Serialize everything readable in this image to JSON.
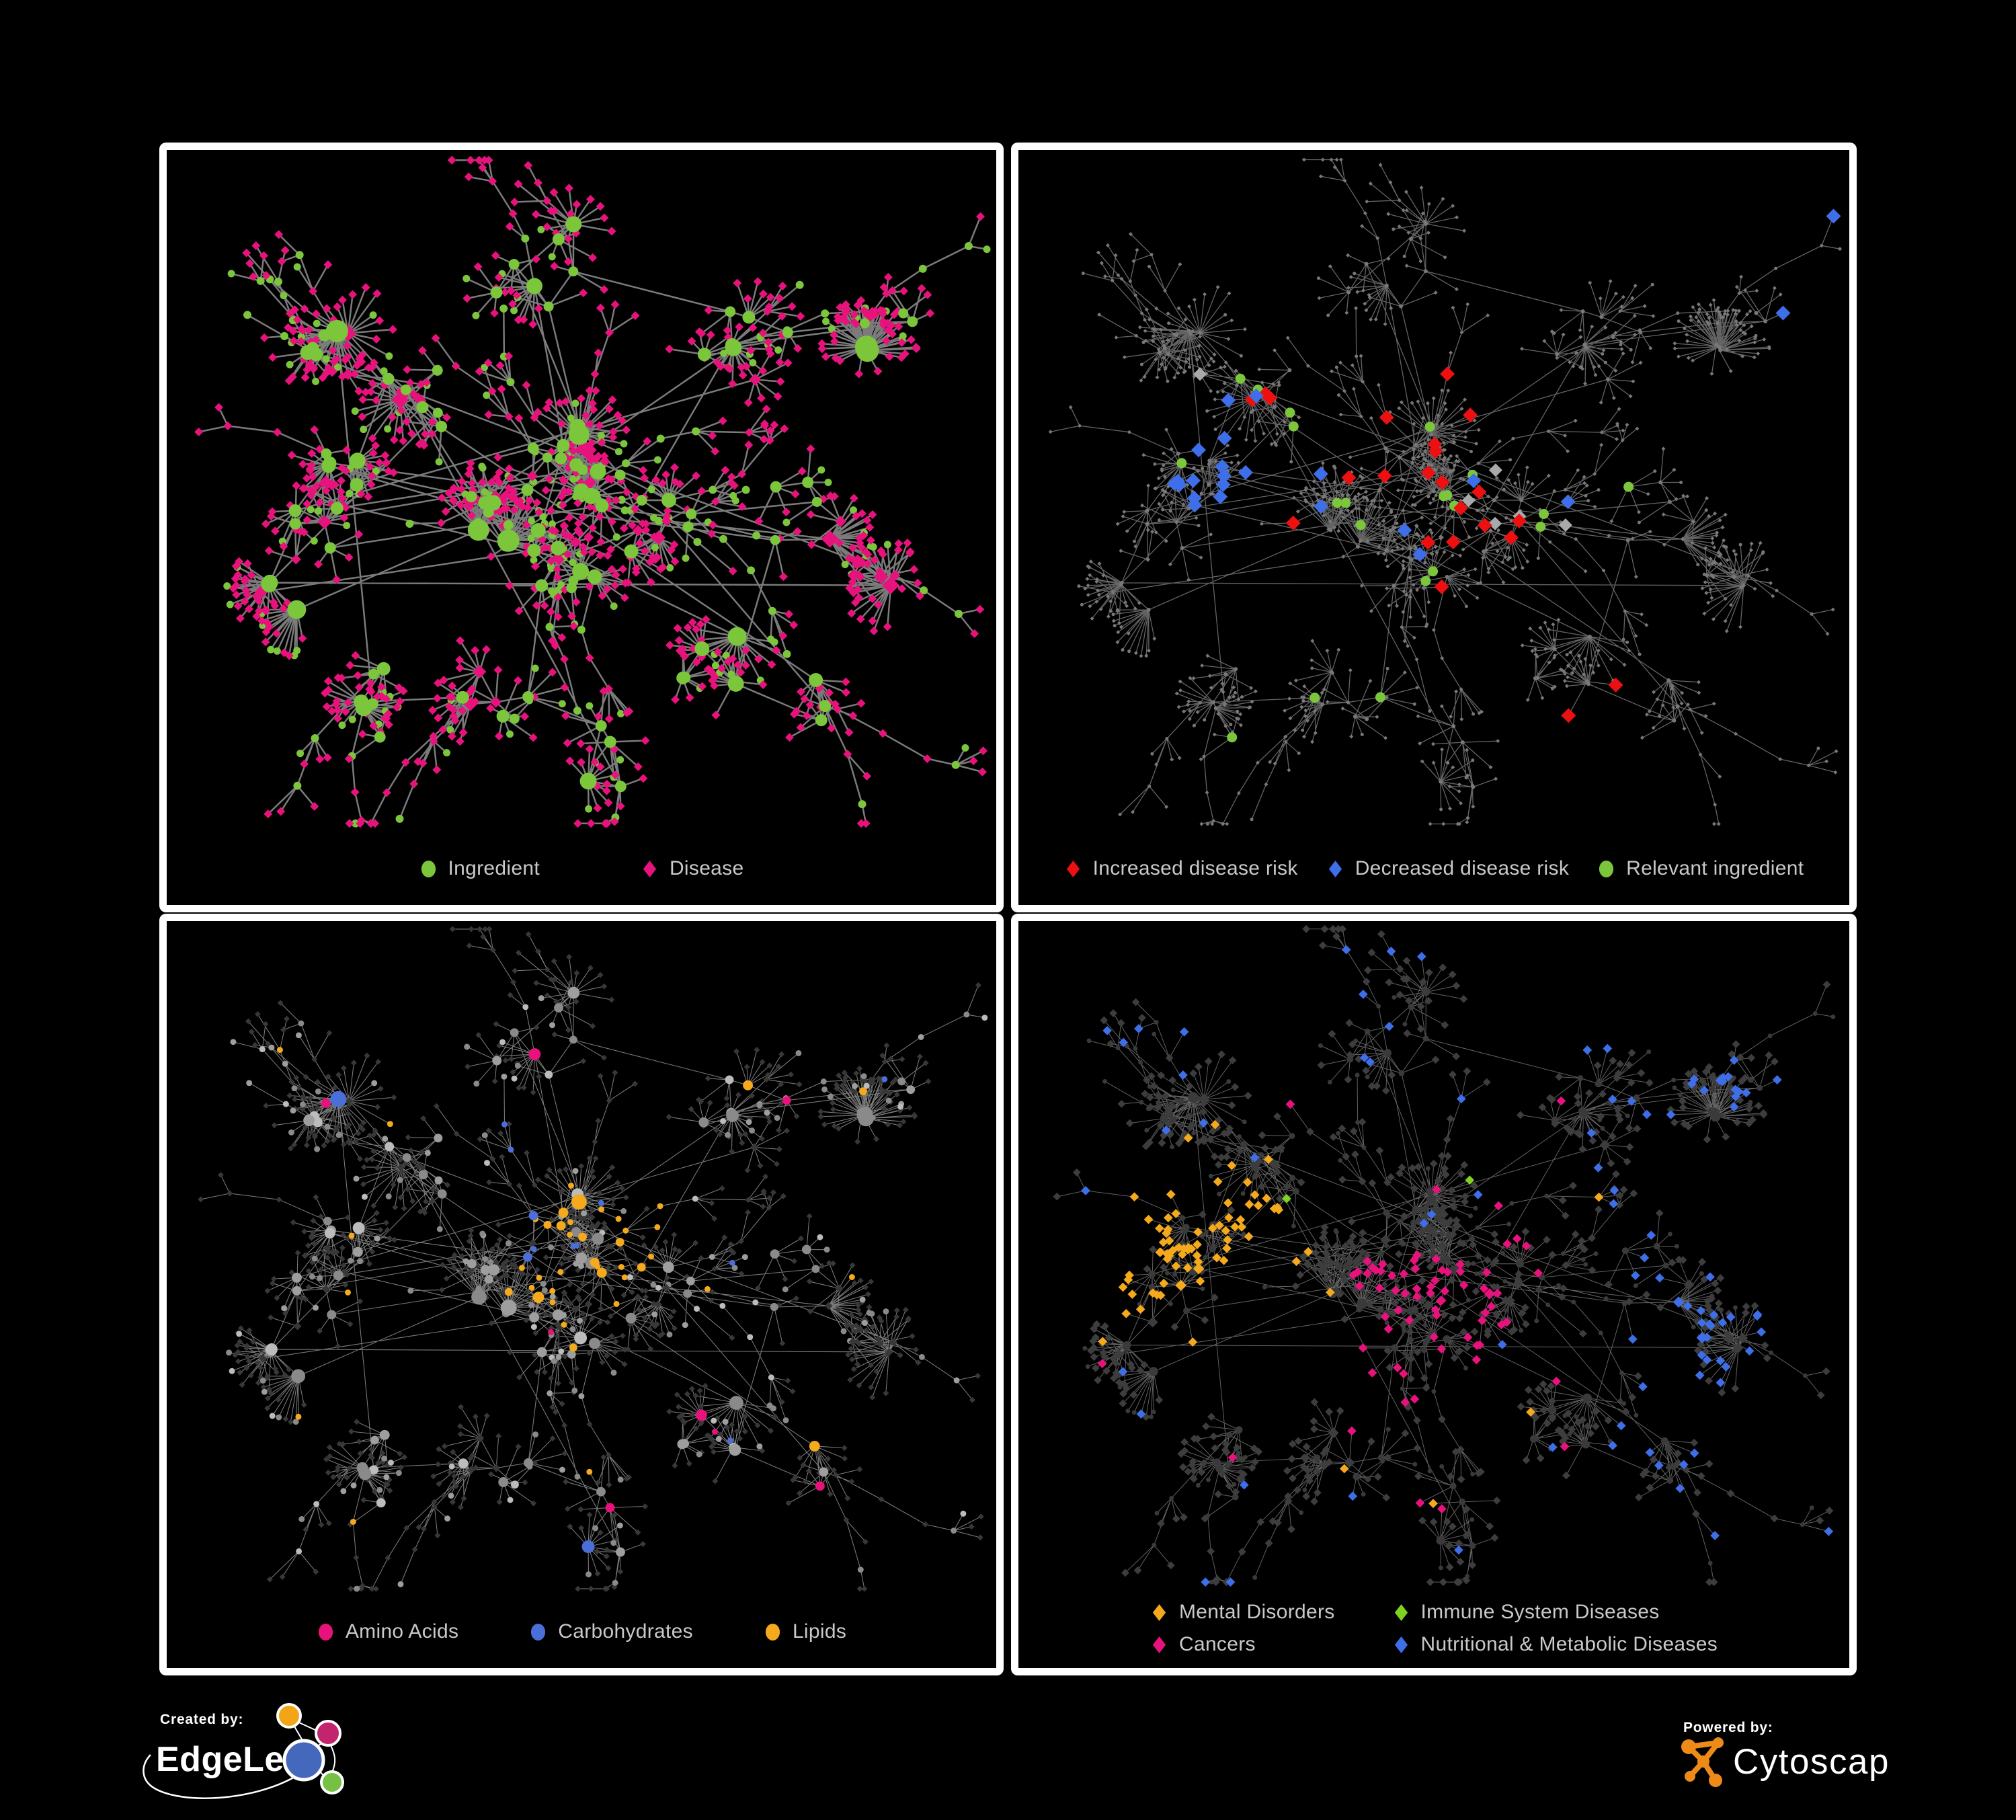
{
  "panels": {
    "p1": {
      "id": "ingredient-disease-network",
      "legend": [
        {
          "label": "Ingredient",
          "shape": "circle",
          "color": "#7cc63c"
        },
        {
          "label": "Disease",
          "shape": "diamond",
          "color": "#e8127c"
        }
      ]
    },
    "p2": {
      "id": "disease-risk-network",
      "legend": [
        {
          "label": "Increased disease risk",
          "shape": "diamond",
          "color": "#ee1010"
        },
        {
          "label": "Decreased disease risk",
          "shape": "diamond",
          "color": "#3e6fe8"
        },
        {
          "label": "Relevant ingredient",
          "shape": "circle",
          "color": "#7cc63c"
        }
      ]
    },
    "p3": {
      "id": "nutrient-class-network",
      "legend": [
        {
          "label": "Amino Acids",
          "shape": "circle",
          "color": "#e8127c"
        },
        {
          "label": "Carbohydrates",
          "shape": "circle",
          "color": "#4a6fd8"
        },
        {
          "label": "Lipids",
          "shape": "circle",
          "color": "#f5a91c"
        }
      ]
    },
    "p4": {
      "id": "disease-category-network",
      "legend": [
        {
          "label": "Mental Disorders",
          "shape": "diamond",
          "color": "#f5a91c"
        },
        {
          "label": "Immune System Diseases",
          "shape": "diamond",
          "color": "#7ed321"
        },
        {
          "label": "Cancers",
          "shape": "diamond",
          "color": "#e8127c"
        },
        {
          "label": "Nutritional & Metabolic Diseases",
          "shape": "diamond",
          "color": "#3e6fe8"
        }
      ]
    }
  },
  "footer": {
    "created_by_label": "Created by:",
    "created_by_name": "EdgeLeap",
    "powered_by_label": "Powered by:",
    "powered_by_name": "Cytoscape",
    "edgeleap_mark_colors": {
      "orange": "#f2a516",
      "magenta": "#c2246e",
      "blue": "#4468bc",
      "green": "#76c043"
    },
    "cytoscape_mark_color": "#ee8b18"
  },
  "network": {
    "seed": 1337,
    "chains": 34,
    "clusters": [
      [
        620,
        470,
        85,
        16
      ],
      [
        500,
        560,
        75,
        11
      ],
      [
        265,
        520,
        90,
        12
      ],
      [
        590,
        615,
        70,
        9
      ],
      [
        730,
        545,
        70,
        8
      ],
      [
        390,
        380,
        80,
        8
      ],
      [
        240,
        290,
        85,
        7
      ],
      [
        560,
        165,
        85,
        7
      ],
      [
        850,
        295,
        85,
        7
      ],
      [
        1065,
        250,
        70,
        6
      ],
      [
        950,
        545,
        70,
        6
      ],
      [
        155,
        645,
        60,
        5
      ],
      [
        480,
        800,
        70,
        7
      ],
      [
        295,
        815,
        70,
        6
      ],
      [
        805,
        765,
        70,
        6
      ],
      [
        645,
        905,
        60,
        4
      ],
      [
        1080,
        640,
        60,
        4
      ],
      [
        930,
        820,
        55,
        3
      ]
    ],
    "colors": {
      "ingredient": "#7cc63c",
      "disease": "#e8127c",
      "risk_up": "#ee1010",
      "risk_down": "#3e6fe8",
      "neutral": "#a9a9a9",
      "tiny": "#787878",
      "amino": "#e8127c",
      "carb": "#4a6fd8",
      "lipid": "#f5a91c",
      "mental": "#f5a91c",
      "immune": "#7ed321",
      "cancer": "#e8127c",
      "metabolic": "#3e6fe8",
      "dark_diamond": "#3d3d3d",
      "dark_circle": "#3a3a3a",
      "edge_p1": "#7b7b7b",
      "edge_p2": "#6f6f6f",
      "edge_p3": "#9c9c9c",
      "edge_p4": "#8d8d8d"
    }
  }
}
